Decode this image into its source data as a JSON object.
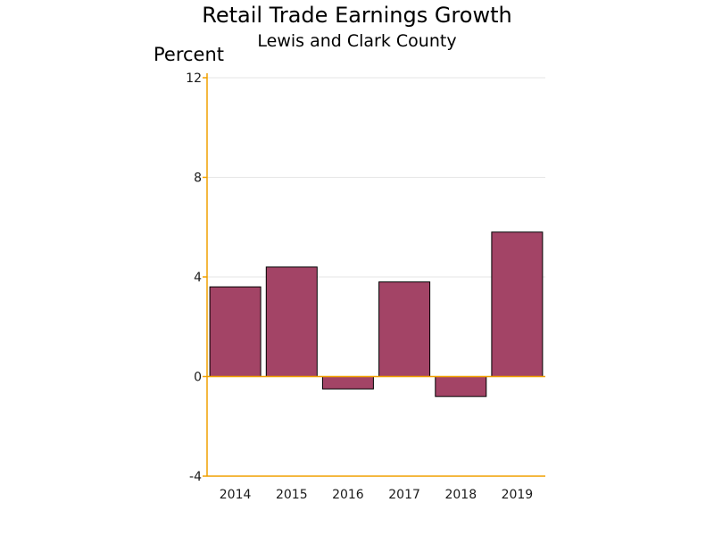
{
  "chart_data": {
    "type": "bar",
    "title": "Retail Trade Earnings Growth",
    "subtitle": "Lewis and Clark County",
    "ylabel": "Percent",
    "xlabel": "",
    "categories": [
      "2014",
      "2015",
      "2016",
      "2017",
      "2018",
      "2019"
    ],
    "values": [
      3.6,
      4.4,
      -0.5,
      3.8,
      -0.8,
      5.8
    ],
    "ylim": [
      -4,
      12
    ],
    "yticks": [
      -4,
      0,
      4,
      8,
      12
    ],
    "ytick_labels": [
      "-4",
      "0",
      "4",
      "8",
      "12"
    ],
    "grid": true,
    "legend": "none",
    "colors": {
      "bar_fill": "#a34466",
      "bar_stroke": "#000000",
      "axis": "#f0a000",
      "grid": "#e6e6e6",
      "zero_line": "#f0a000"
    }
  }
}
